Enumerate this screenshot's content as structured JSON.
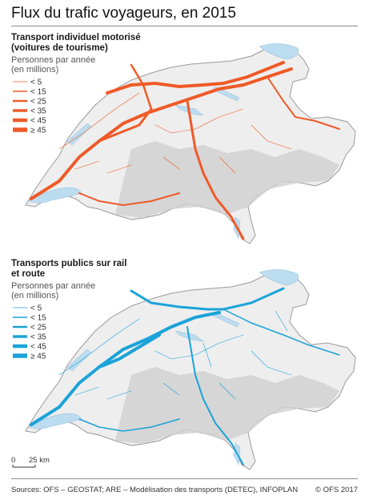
{
  "title": "Flux du trafic voyageurs, en 2015",
  "colors": {
    "car": "#ef5a28",
    "public": "#1aa3d9",
    "lake": "#bcdcf0",
    "relief": "#d5d5d5"
  },
  "panels": [
    {
      "title_line1": "Transport individuel motorisé",
      "title_line2": "(voitures de tourisme)",
      "legend_title_line1": "Personnes par année",
      "legend_title_line2": "(en millions)",
      "legend": [
        "<   5",
        "< 15",
        "< 25",
        "< 35",
        "< 45",
        "≥ 45"
      ]
    },
    {
      "title_line1": "Transports publics sur rail",
      "title_line2": "et route",
      "legend_title_line1": "Personnes par année",
      "legend_title_line2": "(en millions)",
      "legend": [
        "<   5",
        "< 15",
        "< 25",
        "< 35",
        "< 45",
        "≥ 45"
      ]
    }
  ],
  "scale": {
    "zero": "0",
    "label": "25 km"
  },
  "sources": "Sources: OFS – GEOSTAT; ARE – Modélisation des transports (DETEC), INFOPLAN",
  "copyright": "© OFS 2017"
}
